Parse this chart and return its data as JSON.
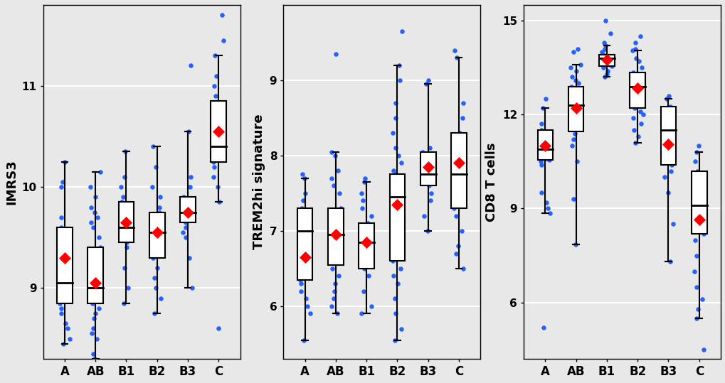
{
  "categories": [
    "A",
    "AB",
    "B1",
    "B2",
    "B3",
    "C"
  ],
  "background_color": "#e8e8e8",
  "plot1": {
    "ylabel": "IMRS3",
    "yticks": [
      9,
      10,
      11
    ],
    "ylim": [
      8.3,
      11.8
    ],
    "boxes": {
      "A": {
        "q1": 8.85,
        "median": 9.05,
        "q3": 9.6,
        "whislo": 8.45,
        "whishi": 10.25,
        "mean": 9.3
      },
      "AB": {
        "q1": 8.85,
        "median": 9.0,
        "q3": 9.4,
        "whislo": 8.3,
        "whishi": 10.15,
        "mean": 9.05
      },
      "B1": {
        "q1": 9.45,
        "median": 9.6,
        "q3": 9.85,
        "whislo": 8.85,
        "whishi": 10.35,
        "mean": 9.65
      },
      "B2": {
        "q1": 9.3,
        "median": 9.55,
        "q3": 9.75,
        "whislo": 8.75,
        "whishi": 10.4,
        "mean": 9.55
      },
      "B3": {
        "q1": 9.65,
        "median": 9.75,
        "q3": 9.9,
        "whislo": 9.0,
        "whishi": 10.55,
        "mean": 9.75
      },
      "C": {
        "q1": 10.25,
        "median": 10.4,
        "q3": 10.85,
        "whislo": 9.85,
        "whishi": 11.3,
        "mean": 10.55
      }
    },
    "dots": {
      "A": [
        8.45,
        8.5,
        8.6,
        8.65,
        8.75,
        8.8,
        8.85,
        8.9,
        9.0,
        9.05,
        9.1,
        9.3,
        9.5,
        9.6,
        9.7,
        10.0,
        10.05,
        10.25
      ],
      "AB": [
        8.3,
        8.35,
        8.5,
        8.55,
        8.6,
        8.7,
        8.75,
        8.8,
        8.85,
        8.9,
        9.0,
        9.05,
        9.1,
        9.15,
        9.2,
        9.3,
        9.4,
        9.5,
        9.6,
        9.65,
        9.7,
        9.75,
        9.8,
        9.9,
        10.0,
        10.15
      ],
      "B1": [
        8.85,
        9.0,
        9.2,
        9.4,
        9.45,
        9.5,
        9.55,
        9.6,
        9.65,
        9.7,
        9.75,
        9.8,
        9.85,
        9.9,
        10.0,
        10.1,
        10.35
      ],
      "B2": [
        8.75,
        8.9,
        9.0,
        9.1,
        9.2,
        9.3,
        9.35,
        9.4,
        9.5,
        9.55,
        9.6,
        9.65,
        9.7,
        9.75,
        9.8,
        9.9,
        10.0,
        10.2,
        10.4
      ],
      "B3": [
        9.0,
        9.3,
        9.5,
        9.55,
        9.6,
        9.65,
        9.7,
        9.75,
        9.8,
        9.85,
        9.9,
        10.0,
        10.1,
        10.55,
        11.2
      ],
      "C": [
        8.6,
        9.85,
        10.0,
        10.1,
        10.2,
        10.25,
        10.3,
        10.4,
        10.5,
        10.6,
        10.7,
        10.75,
        10.8,
        10.9,
        11.0,
        11.1,
        11.3,
        11.45,
        11.7
      ]
    }
  },
  "plot2": {
    "ylabel": "TREM2hi signature",
    "yticks": [
      6,
      7,
      8,
      9
    ],
    "ylim": [
      5.3,
      10.0
    ],
    "boxes": {
      "A": {
        "q1": 6.35,
        "median": 7.0,
        "q3": 7.3,
        "whislo": 5.55,
        "whishi": 7.7,
        "mean": 6.65
      },
      "AB": {
        "q1": 6.55,
        "median": 6.95,
        "q3": 7.3,
        "whislo": 5.9,
        "whishi": 8.05,
        "mean": 6.95
      },
      "B1": {
        "q1": 6.5,
        "median": 6.85,
        "q3": 7.1,
        "whislo": 5.9,
        "whishi": 7.65,
        "mean": 6.85
      },
      "B2": {
        "q1": 6.6,
        "median": 7.45,
        "q3": 7.75,
        "whislo": 5.55,
        "whishi": 9.2,
        "mean": 7.35
      },
      "B3": {
        "q1": 7.6,
        "median": 7.75,
        "q3": 8.05,
        "whislo": 7.0,
        "whishi": 8.95,
        "mean": 7.85
      },
      "C": {
        "q1": 7.3,
        "median": 7.75,
        "q3": 8.3,
        "whislo": 6.5,
        "whishi": 9.3,
        "mean": 7.9
      }
    },
    "dots": {
      "A": [
        5.55,
        5.9,
        6.0,
        6.1,
        6.2,
        6.3,
        6.35,
        6.5,
        6.6,
        6.7,
        6.8,
        6.9,
        7.0,
        7.1,
        7.2,
        7.3,
        7.4,
        7.5,
        7.7,
        7.75
      ],
      "AB": [
        5.9,
        6.0,
        6.1,
        6.2,
        6.3,
        6.4,
        6.5,
        6.6,
        6.7,
        6.8,
        6.9,
        7.0,
        7.1,
        7.2,
        7.3,
        7.5,
        7.6,
        7.7,
        7.8,
        8.0,
        8.05,
        9.35
      ],
      "B1": [
        5.9,
        6.0,
        6.2,
        6.4,
        6.5,
        6.6,
        6.7,
        6.8,
        6.85,
        6.9,
        7.0,
        7.05,
        7.1,
        7.2,
        7.3,
        7.4,
        7.5,
        7.65,
        7.7
      ],
      "B2": [
        5.55,
        5.7,
        5.9,
        6.1,
        6.3,
        6.4,
        6.5,
        6.6,
        6.7,
        6.8,
        6.9,
        7.0,
        7.2,
        7.4,
        7.5,
        7.6,
        7.7,
        7.75,
        7.8,
        7.9,
        8.0,
        8.1,
        8.3,
        8.5,
        8.7,
        9.0,
        9.2,
        9.65
      ],
      "B3": [
        7.0,
        7.2,
        7.4,
        7.5,
        7.6,
        7.65,
        7.7,
        7.75,
        7.8,
        7.9,
        8.0,
        8.05,
        8.1,
        8.95,
        9.0
      ],
      "C": [
        6.5,
        6.7,
        6.8,
        7.0,
        7.2,
        7.3,
        7.5,
        7.6,
        7.7,
        7.75,
        7.8,
        7.9,
        8.0,
        8.1,
        8.2,
        8.3,
        8.5,
        8.7,
        9.3,
        9.4
      ]
    }
  },
  "plot3": {
    "ylabel": "CD8 T cells",
    "yticks": [
      6,
      9,
      12,
      15
    ],
    "ylim": [
      4.2,
      15.5
    ],
    "boxes": {
      "A": {
        "q1": 10.55,
        "median": 10.9,
        "q3": 11.5,
        "whislo": 8.85,
        "whishi": 12.2,
        "mean": 11.0
      },
      "AB": {
        "q1": 11.45,
        "median": 12.3,
        "q3": 12.9,
        "whislo": 7.85,
        "whishi": 13.6,
        "mean": 12.2
      },
      "B1": {
        "q1": 13.55,
        "median": 13.8,
        "q3": 13.9,
        "whislo": 13.2,
        "whishi": 14.2,
        "mean": 13.75
      },
      "B2": {
        "q1": 12.2,
        "median": 12.9,
        "q3": 13.35,
        "whislo": 11.1,
        "whishi": 14.05,
        "mean": 12.85
      },
      "B3": {
        "q1": 10.4,
        "median": 11.5,
        "q3": 12.25,
        "whislo": 7.3,
        "whishi": 12.5,
        "mean": 11.05
      },
      "C": {
        "q1": 8.2,
        "median": 9.1,
        "q3": 10.2,
        "whislo": 5.5,
        "whishi": 10.8,
        "mean": 8.65
      }
    },
    "dots": {
      "A": [
        5.2,
        8.85,
        9.0,
        9.2,
        9.5,
        10.4,
        10.5,
        10.55,
        10.6,
        10.7,
        10.8,
        10.9,
        11.0,
        11.1,
        11.5,
        11.7,
        12.2,
        12.5
      ],
      "AB": [
        7.85,
        9.3,
        10.5,
        11.0,
        11.2,
        11.4,
        11.5,
        11.6,
        11.7,
        11.9,
        12.0,
        12.1,
        12.2,
        12.3,
        12.4,
        12.5,
        12.6,
        12.7,
        12.8,
        12.9,
        13.0,
        13.1,
        13.2,
        13.4,
        13.5,
        13.6,
        14.0,
        14.1
      ],
      "B1": [
        13.2,
        13.3,
        13.4,
        13.5,
        13.55,
        13.6,
        13.65,
        13.7,
        13.75,
        13.8,
        13.85,
        13.9,
        14.0,
        14.1,
        14.2,
        14.3,
        14.6,
        15.0
      ],
      "B2": [
        11.1,
        11.3,
        11.5,
        11.7,
        11.9,
        12.0,
        12.1,
        12.2,
        12.3,
        12.5,
        12.7,
        12.9,
        13.0,
        13.1,
        13.2,
        13.35,
        13.5,
        13.7,
        13.8,
        14.05,
        14.1,
        14.3,
        14.5
      ],
      "B3": [
        7.3,
        8.5,
        9.5,
        10.0,
        10.2,
        10.4,
        10.5,
        10.8,
        11.0,
        11.2,
        11.5,
        11.7,
        11.9,
        12.1,
        12.25,
        12.5,
        12.6
      ],
      "C": [
        4.5,
        5.5,
        5.8,
        6.1,
        6.5,
        7.0,
        7.5,
        8.0,
        8.2,
        8.5,
        8.7,
        8.9,
        9.0,
        9.1,
        9.3,
        9.5,
        9.7,
        10.0,
        10.2,
        10.5,
        10.8,
        11.0
      ]
    }
  }
}
